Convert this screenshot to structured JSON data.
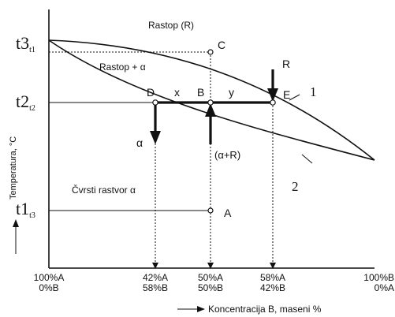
{
  "diagram": {
    "regions": {
      "liquid": "Rastop (R)",
      "two_phase": "Rastop + α",
      "solid": "Čvrsti rastvor α"
    },
    "y_axis": {
      "label": "Temperatura, °C",
      "t3": "t3",
      "t3_sub": "t1",
      "t2": "t2",
      "t2_sub": "t2",
      "t1": "t1",
      "t1_sub": "t3"
    },
    "x_axis": {
      "label": "Koncentracija B,  maseni %",
      "ticks": [
        {
          "top": "100%A",
          "bottom": "0%B"
        },
        {
          "top": "42%A",
          "bottom": "58%B"
        },
        {
          "top": "50%A",
          "bottom": "50%B"
        },
        {
          "top": "58%A",
          "bottom": "42%B"
        },
        {
          "top": "100%B",
          "bottom": "0%A"
        }
      ]
    },
    "points": {
      "A": "A",
      "B": "B",
      "C": "C",
      "D": "D",
      "E": "E"
    },
    "segments": {
      "x": "x",
      "y": "y"
    },
    "arrows": {
      "alpha": "α",
      "R": "R",
      "alpha_plus_R": "(α+R)"
    },
    "curves": {
      "liquidus": "1",
      "solidus": "2"
    }
  }
}
